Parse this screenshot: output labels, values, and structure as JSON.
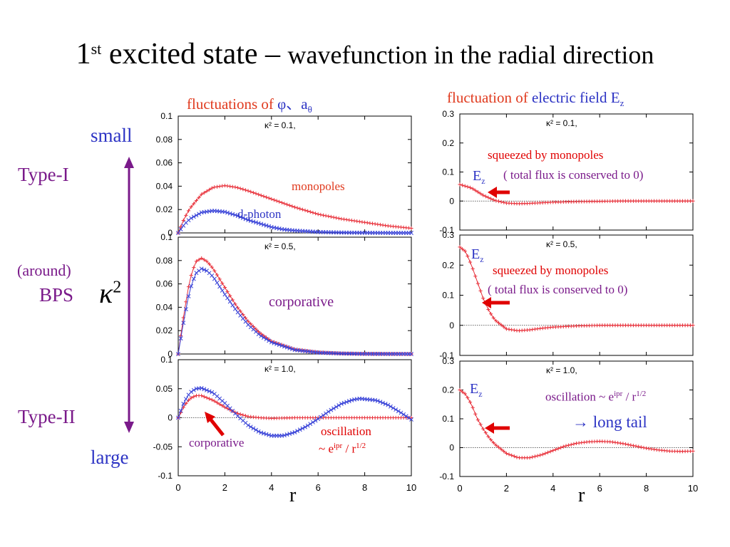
{
  "slide": {
    "title_prefix": "1",
    "title_sup": "st",
    "title_main": " excited state – ",
    "title_rest": "wavefunction in the radial direction"
  },
  "headers": {
    "left_pre": "fluctuations of ",
    "left_sym": "φ、a",
    "left_sub": "θ",
    "right_pre": "fluctuation of ",
    "right_main": "electric field E",
    "right_sub": "z"
  },
  "side_labels": {
    "small": "small",
    "type1": "Type-I",
    "around": "(around)",
    "bps": "BPS",
    "kappa": "κ",
    "kappa_sup": "2",
    "type2": "Type-II",
    "large": "large"
  },
  "annotations": {
    "monopoles": "monopoles",
    "dphoton": "d-photon",
    "corporative_mid": "corporative",
    "corporative_bot": "corporative",
    "osc_left_1": "oscillation",
    "osc_left_2_pre": "~ e",
    "osc_left_2_sup": "ipr",
    "osc_left_2_mid": " / r",
    "osc_left_2_sup2": "1/2",
    "squeezed_1": "squeezed by monopoles",
    "flux_1": "( total flux is conserved to 0)",
    "squeezed_2": "squeezed by monopoles",
    "flux_2": "( total flux is conserved to 0)",
    "ez": "E",
    "ez_sub": "z",
    "osc_right_pre": "oscillation ~ e",
    "osc_right_sup": "ipr",
    "osc_right_mid": " / r",
    "osc_right_sup2": "1/2",
    "long_tail": "→  long tail",
    "r_left": "r",
    "r_right": "r"
  },
  "colors": {
    "red_series": "#e8303a",
    "blue_series": "#3a44d8",
    "arrow": "#e00000",
    "purple_arrow": "#7a1a8a"
  },
  "chart_data": [
    {
      "type": "line",
      "panel": "left-top",
      "annotation": "κ² = 0.1,",
      "xlim": [
        0,
        10
      ],
      "ylim": [
        0,
        0.1
      ],
      "yticks": [
        "0",
        "0.02",
        "0.04",
        "0.06",
        "0.08",
        "0.1"
      ],
      "xticks": [],
      "series": [
        {
          "name": "monopoles",
          "color": "red",
          "x": [
            0,
            0.25,
            0.5,
            1,
            1.5,
            2,
            2.5,
            3,
            4,
            5,
            6,
            7,
            8,
            9,
            10
          ],
          "y": [
            0,
            0.012,
            0.021,
            0.033,
            0.039,
            0.0405,
            0.039,
            0.036,
            0.029,
            0.022,
            0.016,
            0.012,
            0.009,
            0.006,
            0.004
          ]
        },
        {
          "name": "d-photon",
          "color": "blue",
          "x": [
            0,
            0.25,
            0.5,
            1,
            1.5,
            2,
            2.5,
            3,
            3.5,
            4,
            4.5,
            5,
            6,
            7,
            8,
            9,
            10
          ],
          "y": [
            0,
            0.007,
            0.012,
            0.0175,
            0.019,
            0.018,
            0.015,
            0.011,
            0.008,
            0.005,
            0.003,
            0.002,
            0.0008,
            0.0003,
            0.0001,
            0,
            0
          ]
        }
      ]
    },
    {
      "type": "line",
      "panel": "left-mid",
      "annotation": "κ² = 0.5,",
      "xlim": [
        0,
        10
      ],
      "ylim": [
        0,
        0.1
      ],
      "yticks": [
        "0",
        "0.02",
        "0.04",
        "0.06",
        "0.08",
        "0.1"
      ],
      "xticks": [],
      "series": [
        {
          "color": "red",
          "x": [
            0,
            0.25,
            0.5,
            0.75,
            1,
            1.25,
            1.5,
            2,
            2.5,
            3,
            3.5,
            4,
            5,
            6,
            7,
            8,
            10
          ],
          "y": [
            0,
            0.035,
            0.064,
            0.079,
            0.082,
            0.079,
            0.073,
            0.057,
            0.041,
            0.028,
            0.018,
            0.011,
            0.004,
            0.0015,
            0.0005,
            0.0002,
            0
          ]
        },
        {
          "color": "blue",
          "x": [
            0,
            0.25,
            0.5,
            0.75,
            1,
            1.25,
            1.5,
            2,
            2.5,
            3,
            3.5,
            4,
            5,
            6,
            7,
            8,
            10
          ],
          "y": [
            0,
            0.03,
            0.055,
            0.069,
            0.073,
            0.071,
            0.066,
            0.051,
            0.037,
            0.025,
            0.016,
            0.01,
            0.0035,
            0.0012,
            0.0004,
            0.0001,
            0
          ]
        }
      ]
    },
    {
      "type": "line",
      "panel": "left-bottom",
      "annotation": "κ² = 1.0,",
      "xlim": [
        0,
        10
      ],
      "ylim": [
        -0.1,
        0.1
      ],
      "yticks": [
        "-0.1",
        "-0.05",
        "0",
        "0.05",
        "0.1"
      ],
      "xticks": [
        "0",
        "2",
        "4",
        "6",
        "8",
        "10"
      ],
      "series": [
        {
          "color": "red",
          "x": [
            0,
            0.25,
            0.5,
            0.75,
            1,
            1.5,
            2,
            2.5,
            3,
            3.5,
            4,
            5,
            6,
            8,
            10
          ],
          "y": [
            0,
            0.02,
            0.033,
            0.038,
            0.038,
            0.03,
            0.018,
            0.008,
            0.002,
            0,
            -0.001,
            0,
            0,
            0,
            0
          ]
        },
        {
          "color": "blue",
          "x": [
            0,
            0.25,
            0.5,
            0.75,
            1,
            1.5,
            2,
            2.5,
            3,
            3.5,
            4,
            4.5,
            5,
            5.5,
            6,
            6.5,
            7,
            7.5,
            7.8,
            8.5,
            9,
            9.5,
            10
          ],
          "y": [
            0,
            0.027,
            0.043,
            0.05,
            0.051,
            0.043,
            0.025,
            0.005,
            -0.013,
            -0.025,
            -0.031,
            -0.031,
            -0.025,
            -0.015,
            -0.002,
            0.012,
            0.024,
            0.031,
            0.033,
            0.03,
            0.022,
            0.01,
            -0.003
          ]
        }
      ]
    },
    {
      "type": "line",
      "panel": "right-top",
      "annotation": "κ² = 0.1,",
      "xlim": [
        0,
        10
      ],
      "ylim": [
        -0.1,
        0.3
      ],
      "yticks": [
        "-0.1",
        "0",
        "0.1",
        "0.2",
        "0.3"
      ],
      "xticks": [],
      "series": [
        {
          "color": "red",
          "x": [
            0,
            0.5,
            1,
            1.5,
            2,
            2.5,
            3,
            3.5,
            4,
            5,
            6,
            7,
            8,
            9,
            10
          ],
          "y": [
            0.057,
            0.045,
            0.02,
            0.002,
            -0.007,
            -0.009,
            -0.008,
            -0.006,
            -0.004,
            -0.002,
            -0.001,
            0,
            0,
            0,
            0
          ]
        }
      ]
    },
    {
      "type": "line",
      "panel": "right-mid",
      "annotation": "κ² = 0.5,",
      "xlim": [
        0,
        10
      ],
      "ylim": [
        -0.1,
        0.3
      ],
      "yticks": [
        "-0.1",
        "0",
        "0.1",
        "0.2",
        "0.3"
      ],
      "xticks": [],
      "series": [
        {
          "color": "red",
          "x": [
            0,
            0.25,
            0.5,
            0.75,
            1,
            1.25,
            1.5,
            2,
            2.5,
            3,
            3.5,
            4,
            5,
            6,
            8,
            10
          ],
          "y": [
            0.26,
            0.245,
            0.2,
            0.145,
            0.09,
            0.048,
            0.018,
            -0.012,
            -0.018,
            -0.015,
            -0.01,
            -0.006,
            -0.002,
            0,
            0,
            0
          ]
        }
      ]
    },
    {
      "type": "line",
      "panel": "right-bottom",
      "annotation": "κ² = 1.0,",
      "xlim": [
        0,
        10
      ],
      "ylim": [
        -0.1,
        0.3
      ],
      "yticks": [
        "-0.1",
        "0",
        "0.1",
        "0.2",
        "0.3"
      ],
      "xticks": [
        "0",
        "2",
        "4",
        "6",
        "8",
        "10"
      ],
      "series": [
        {
          "color": "red",
          "x": [
            0,
            0.25,
            0.5,
            0.75,
            1,
            1.25,
            1.5,
            2,
            2.5,
            3,
            3.5,
            4,
            4.5,
            5,
            5.5,
            6,
            6.5,
            7,
            7.5,
            8,
            8.5,
            9,
            9.5,
            10
          ],
          "y": [
            0.2,
            0.185,
            0.15,
            0.1,
            0.065,
            0.035,
            0.012,
            -0.02,
            -0.035,
            -0.035,
            -0.025,
            -0.01,
            0.005,
            0.015,
            0.02,
            0.022,
            0.02,
            0.014,
            0.006,
            -0.002,
            -0.008,
            -0.012,
            -0.013,
            -0.012
          ]
        }
      ]
    }
  ]
}
